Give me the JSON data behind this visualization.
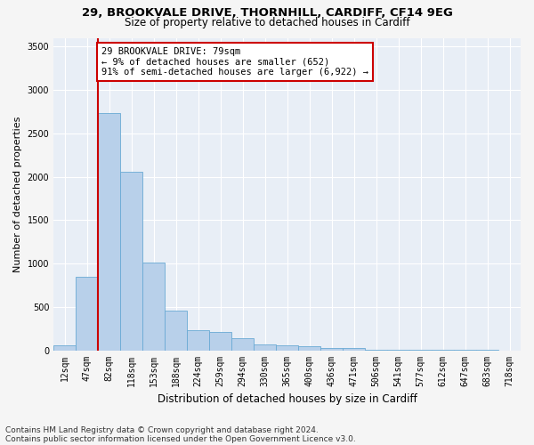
{
  "title1": "29, BROOKVALE DRIVE, THORNHILL, CARDIFF, CF14 9EG",
  "title2": "Size of property relative to detached houses in Cardiff",
  "xlabel": "Distribution of detached houses by size in Cardiff",
  "ylabel": "Number of detached properties",
  "footnote1": "Contains HM Land Registry data © Crown copyright and database right 2024.",
  "footnote2": "Contains public sector information licensed under the Open Government Licence v3.0.",
  "bar_labels": [
    "12sqm",
    "47sqm",
    "82sqm",
    "118sqm",
    "153sqm",
    "188sqm",
    "224sqm",
    "259sqm",
    "294sqm",
    "330sqm",
    "365sqm",
    "400sqm",
    "436sqm",
    "471sqm",
    "506sqm",
    "541sqm",
    "577sqm",
    "612sqm",
    "647sqm",
    "683sqm",
    "718sqm"
  ],
  "bar_values": [
    60,
    850,
    2730,
    2060,
    1010,
    460,
    230,
    210,
    140,
    70,
    60,
    50,
    30,
    25,
    10,
    5,
    3,
    2,
    1,
    1,
    0
  ],
  "bar_color": "#b8d0ea",
  "bar_edge_color": "#6aaad4",
  "vline_color": "#cc0000",
  "vline_bin_index": 2,
  "annotation_text": "29 BROOKVALE DRIVE: 79sqm\n← 9% of detached houses are smaller (652)\n91% of semi-detached houses are larger (6,922) →",
  "annotation_box_facecolor": "#ffffff",
  "annotation_box_edgecolor": "#cc0000",
  "ylim": [
    0,
    3600
  ],
  "yticks": [
    0,
    500,
    1000,
    1500,
    2000,
    2500,
    3000,
    3500
  ],
  "axes_bg_color": "#e8eef6",
  "fig_bg_color": "#f5f5f5",
  "grid_color": "#ffffff",
  "title1_fontsize": 9.5,
  "title2_fontsize": 8.5,
  "xlabel_fontsize": 8.5,
  "ylabel_fontsize": 8,
  "tick_fontsize": 7,
  "annotation_fontsize": 7.5,
  "footnote_fontsize": 6.5
}
